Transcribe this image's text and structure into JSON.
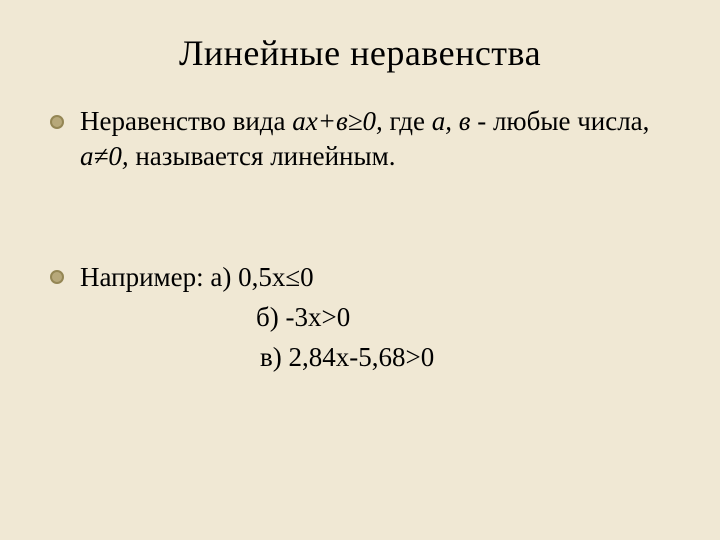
{
  "slide": {
    "background_color": "#f0e8d4",
    "text_color": "#000000",
    "font_family": "Times New Roman",
    "title": {
      "text": "Линейные неравенства",
      "fontsize": 36
    },
    "bullet_style": {
      "fill_color": "#b7a87a",
      "border_color": "#948654",
      "diameter": 14
    },
    "body_fontsize": 27,
    "definition": {
      "prefix": "Неравенство вида ",
      "formula": "ах+в≥0,",
      "mid1": " где ",
      "params": "а, в",
      "mid2": " - любые числа, ",
      "condition": "а≠0,",
      "suffix": " называется линейным."
    },
    "example_label": "Например:  ",
    "examples": {
      "a": "а) 0,5х≤0",
      "b": "б)  -3х>0",
      "c": "в)  2,84х-5,68>0"
    }
  }
}
